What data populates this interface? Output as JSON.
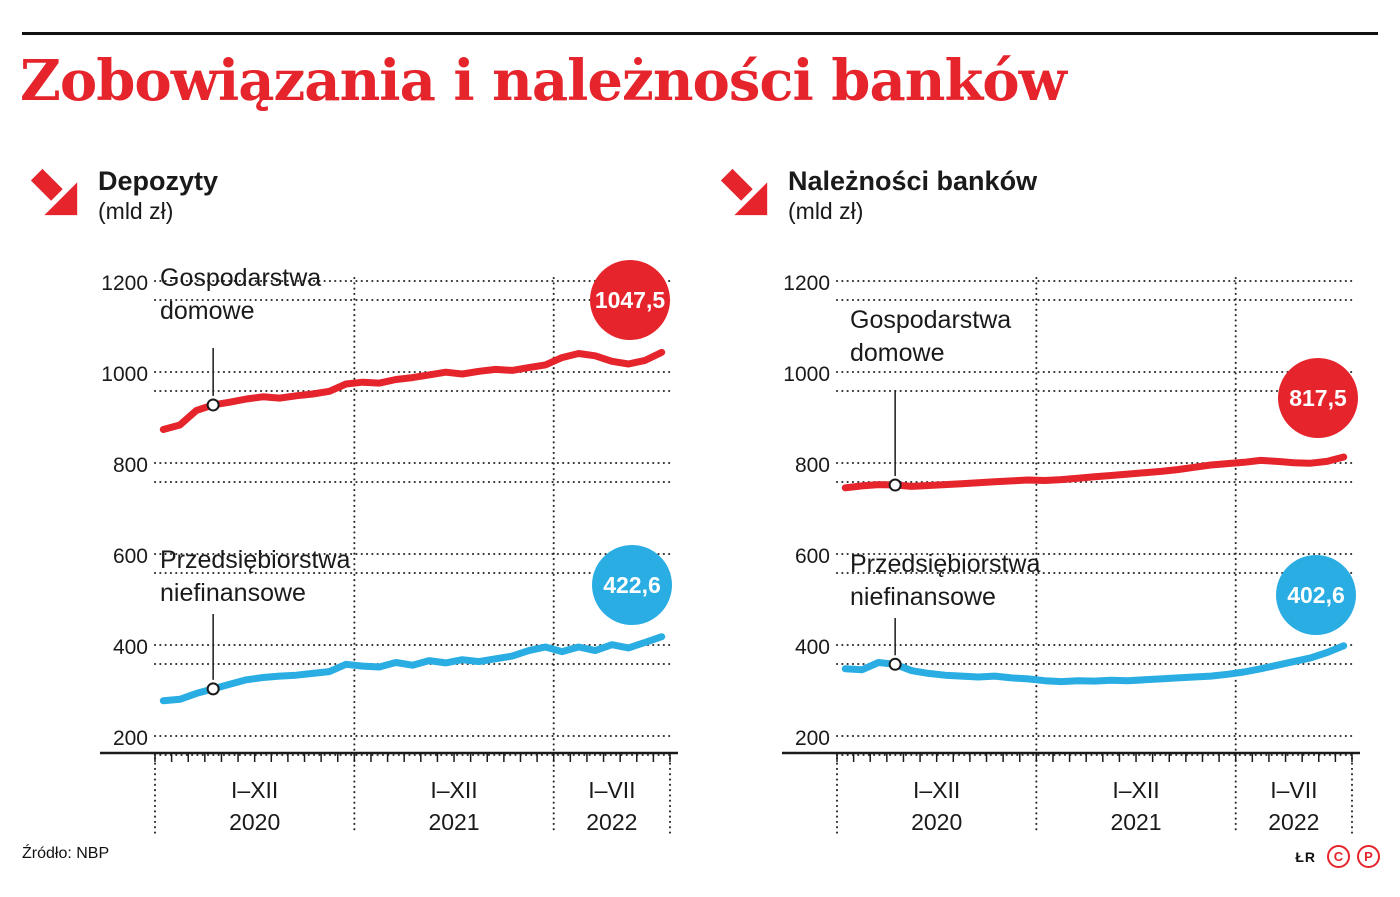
{
  "title": "Zobowiązania i należności banków",
  "source": "Źródło: NBP",
  "credits": {
    "initials": "ŁR",
    "logo_letters": [
      "C",
      "P"
    ]
  },
  "colors": {
    "red": "#e5242c",
    "blue": "#29ade3",
    "ink": "#1a1a1a"
  },
  "chart_data": [
    {
      "type": "line",
      "heading": "Depozyty",
      "unit": "(mld zł)",
      "ylim": [
        200,
        1200
      ],
      "y_ticks": [
        200,
        400,
        600,
        800,
        1000,
        1200
      ],
      "grid": "dotted",
      "x_groups": [
        {
          "months": "I–XII",
          "year": "2020"
        },
        {
          "months": "I–XII",
          "year": "2021"
        },
        {
          "months": "I–VII",
          "year": "2022"
        }
      ],
      "series": [
        {
          "name": "Gospodarstwa domowe",
          "color": "red",
          "latest_label": "1047,5",
          "latest_value": 1047.5,
          "values": [
            878,
            888,
            920,
            932,
            938,
            945,
            950,
            947,
            952,
            956,
            962,
            978,
            982,
            980,
            988,
            992,
            998,
            1004,
            1000,
            1006,
            1010,
            1008,
            1014,
            1020,
            1036,
            1045,
            1040,
            1028,
            1022,
            1030,
            1047.5
          ]
        },
        {
          "name": "Przedsiębiorstwa niefinansowe",
          "color": "blue",
          "latest_label": "422,6",
          "latest_value": 422.6,
          "values": [
            282,
            285,
            298,
            308,
            318,
            328,
            333,
            336,
            338,
            342,
            346,
            362,
            358,
            356,
            366,
            360,
            370,
            365,
            372,
            368,
            374,
            380,
            392,
            400,
            390,
            400,
            392,
            405,
            398,
            410,
            422.6
          ]
        }
      ]
    },
    {
      "type": "line",
      "heading": "Należności banków",
      "unit": "(mld zł)",
      "ylim": [
        200,
        1200
      ],
      "y_ticks": [
        200,
        400,
        600,
        800,
        1000,
        1200
      ],
      "grid": "dotted",
      "x_groups": [
        {
          "months": "I–XII",
          "year": "2020"
        },
        {
          "months": "I–XII",
          "year": "2021"
        },
        {
          "months": "I–VII",
          "year": "2022"
        }
      ],
      "series": [
        {
          "name": "Gospodarstwa domowe",
          "color": "red",
          "latest_label": "817,5",
          "latest_value": 817.5,
          "values": [
            750,
            754,
            757,
            756,
            753,
            755,
            757,
            759,
            761,
            763,
            765,
            767,
            766,
            768,
            771,
            774,
            777,
            780,
            783,
            786,
            790,
            795,
            800,
            803,
            806,
            810,
            808,
            805,
            804,
            808,
            817.5
          ]
        },
        {
          "name": "Przedsiębiorstwa niefinansowe",
          "color": "blue",
          "latest_label": "402,6",
          "latest_value": 402.6,
          "values": [
            352,
            350,
            366,
            362,
            348,
            342,
            338,
            336,
            334,
            336,
            332,
            330,
            326,
            324,
            326,
            325,
            327,
            326,
            328,
            330,
            332,
            334,
            336,
            340,
            345,
            352,
            360,
            368,
            376,
            388,
            402.6
          ]
        }
      ]
    }
  ]
}
